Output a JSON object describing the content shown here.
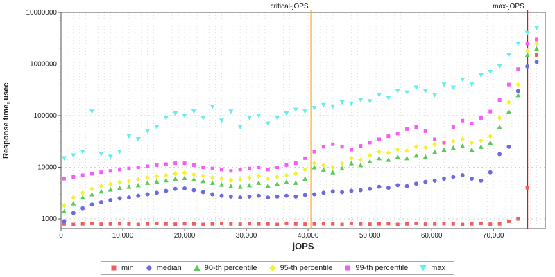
{
  "axes": {
    "x_label": "jOPS",
    "y_label": "Response time, usec",
    "x_ticks": [
      {
        "v": 0,
        "label": "0"
      },
      {
        "v": 10000,
        "label": "10,000"
      },
      {
        "v": 20000,
        "label": "20,000"
      },
      {
        "v": 30000,
        "label": "30,000"
      },
      {
        "v": 40000,
        "label": "40,000"
      },
      {
        "v": 50000,
        "label": "50,000"
      },
      {
        "v": 60000,
        "label": "60,000"
      },
      {
        "v": 70000,
        "label": "70,000"
      }
    ],
    "y_ticks": [
      {
        "v": 1000,
        "label": "1000"
      },
      {
        "v": 10000,
        "label": "10000"
      },
      {
        "v": 100000,
        "label": "100000"
      },
      {
        "v": 1000000,
        "label": "1000000"
      },
      {
        "v": 10000000,
        "label": "10000000"
      }
    ]
  },
  "chart_data": {
    "type": "scatter",
    "title": "",
    "xlabel": "jOPS",
    "ylabel": "Response time, usec",
    "x_range": [
      0,
      78400
    ],
    "y_range": [
      649,
      10000000
    ],
    "y_scale": "log",
    "grid": true,
    "legend_position": "bottom",
    "annotations": [
      {
        "label": "critical-jOPS",
        "x": 40500,
        "color": "#f2a200"
      },
      {
        "label": "max-jOPS",
        "x": 75500,
        "color": "#d81414"
      }
    ],
    "x": [
      500,
      2000,
      3500,
      5000,
      6500,
      8000,
      9500,
      11000,
      12500,
      14000,
      15500,
      17000,
      18500,
      20000,
      21500,
      23000,
      24500,
      26000,
      27500,
      29000,
      30500,
      32000,
      33500,
      35000,
      36500,
      38000,
      39500,
      41000,
      42500,
      44000,
      45500,
      47000,
      48500,
      50000,
      51500,
      53000,
      54500,
      56000,
      57500,
      59000,
      60500,
      62000,
      63500,
      65000,
      66500,
      68000,
      69500,
      71000,
      72500,
      74000,
      75500,
      77000
    ],
    "series": [
      {
        "name": "min",
        "marker": "square",
        "color": "#f25c5c",
        "values": [
          800,
          780,
          800,
          820,
          790,
          800,
          810,
          800,
          780,
          800,
          820,
          800,
          790,
          810,
          800,
          780,
          800,
          820,
          800,
          790,
          810,
          800,
          800,
          780,
          820,
          800,
          790,
          800,
          810,
          800,
          780,
          820,
          800,
          790,
          800,
          810,
          780,
          800,
          820,
          790,
          800,
          810,
          800,
          780,
          800,
          820,
          790,
          800,
          900,
          1000,
          4000,
          1500000
        ]
      },
      {
        "name": "median",
        "marker": "circle",
        "color": "#6b6be0",
        "values": [
          900,
          1300,
          1600,
          1900,
          2100,
          2300,
          2500,
          2600,
          2800,
          3000,
          3200,
          3500,
          3800,
          3900,
          3600,
          3300,
          3000,
          2800,
          2700,
          2600,
          2700,
          2800,
          2600,
          2700,
          2800,
          2700,
          2900,
          3000,
          3200,
          3400,
          3300,
          3500,
          3600,
          3800,
          4200,
          4000,
          4500,
          4300,
          4800,
          5200,
          5500,
          6000,
          6500,
          7000,
          6000,
          5500,
          8000,
          18000,
          25000,
          300000,
          900000,
          1100000
        ]
      },
      {
        "name": "90-th percentile",
        "marker": "triangle-up",
        "color": "#57cc57",
        "values": [
          1400,
          2000,
          2600,
          3000,
          3400,
          3700,
          4000,
          4200,
          4500,
          5000,
          5300,
          5600,
          6000,
          6200,
          5800,
          5400,
          5000,
          4600,
          4300,
          4200,
          4500,
          5000,
          4400,
          4800,
          5200,
          5000,
          6000,
          10000,
          9000,
          8000,
          9500,
          12000,
          11000,
          13000,
          15000,
          14000,
          16000,
          15000,
          17000,
          16000,
          20000,
          22000,
          24000,
          26000,
          22000,
          25000,
          30000,
          60000,
          120000,
          250000,
          1500000,
          2000000
        ]
      },
      {
        "name": "95-th percentile",
        "marker": "diamond",
        "color": "#f2f235",
        "values": [
          1800,
          2600,
          3200,
          3800,
          4300,
          4700,
          5100,
          5400,
          5800,
          6300,
          6700,
          7000,
          7500,
          7800,
          7200,
          6800,
          6300,
          6000,
          5600,
          5800,
          6200,
          6800,
          6000,
          6500,
          7000,
          7500,
          9000,
          12000,
          11000,
          10000,
          12000,
          15000,
          14000,
          17000,
          20000,
          19000,
          22000,
          21000,
          25000,
          24000,
          28000,
          30000,
          32000,
          35000,
          30000,
          33000,
          40000,
          90000,
          180000,
          400000,
          1800000,
          2500000
        ]
      },
      {
        "name": "99-th percentile",
        "marker": "square",
        "color": "#f55cf5",
        "values": [
          6000,
          6500,
          7000,
          7500,
          8000,
          8500,
          9000,
          9500,
          10000,
          10500,
          11000,
          11500,
          12000,
          12000,
          11000,
          10000,
          9500,
          9000,
          8500,
          9000,
          9500,
          10000,
          9000,
          10000,
          11000,
          12000,
          15000,
          20000,
          25000,
          28000,
          25000,
          22000,
          26000,
          30000,
          35000,
          40000,
          45000,
          55000,
          60000,
          50000,
          35000,
          30000,
          60000,
          80000,
          70000,
          90000,
          120000,
          200000,
          400000,
          800000,
          2500000,
          3000000
        ]
      },
      {
        "name": "max",
        "marker": "triangle-down",
        "color": "#66eded",
        "values": [
          15000,
          17000,
          20000,
          120000,
          18000,
          16000,
          20000,
          40000,
          35000,
          50000,
          60000,
          90000,
          110000,
          100000,
          120000,
          90000,
          150000,
          80000,
          120000,
          60000,
          90000,
          100000,
          70000,
          90000,
          110000,
          130000,
          120000,
          140000,
          160000,
          150000,
          180000,
          170000,
          200000,
          190000,
          250000,
          220000,
          300000,
          280000,
          350000,
          300000,
          250000,
          400000,
          350000,
          500000,
          400000,
          600000,
          700000,
          900000,
          1500000,
          2500000,
          4000000,
          5000000
        ]
      }
    ]
  }
}
